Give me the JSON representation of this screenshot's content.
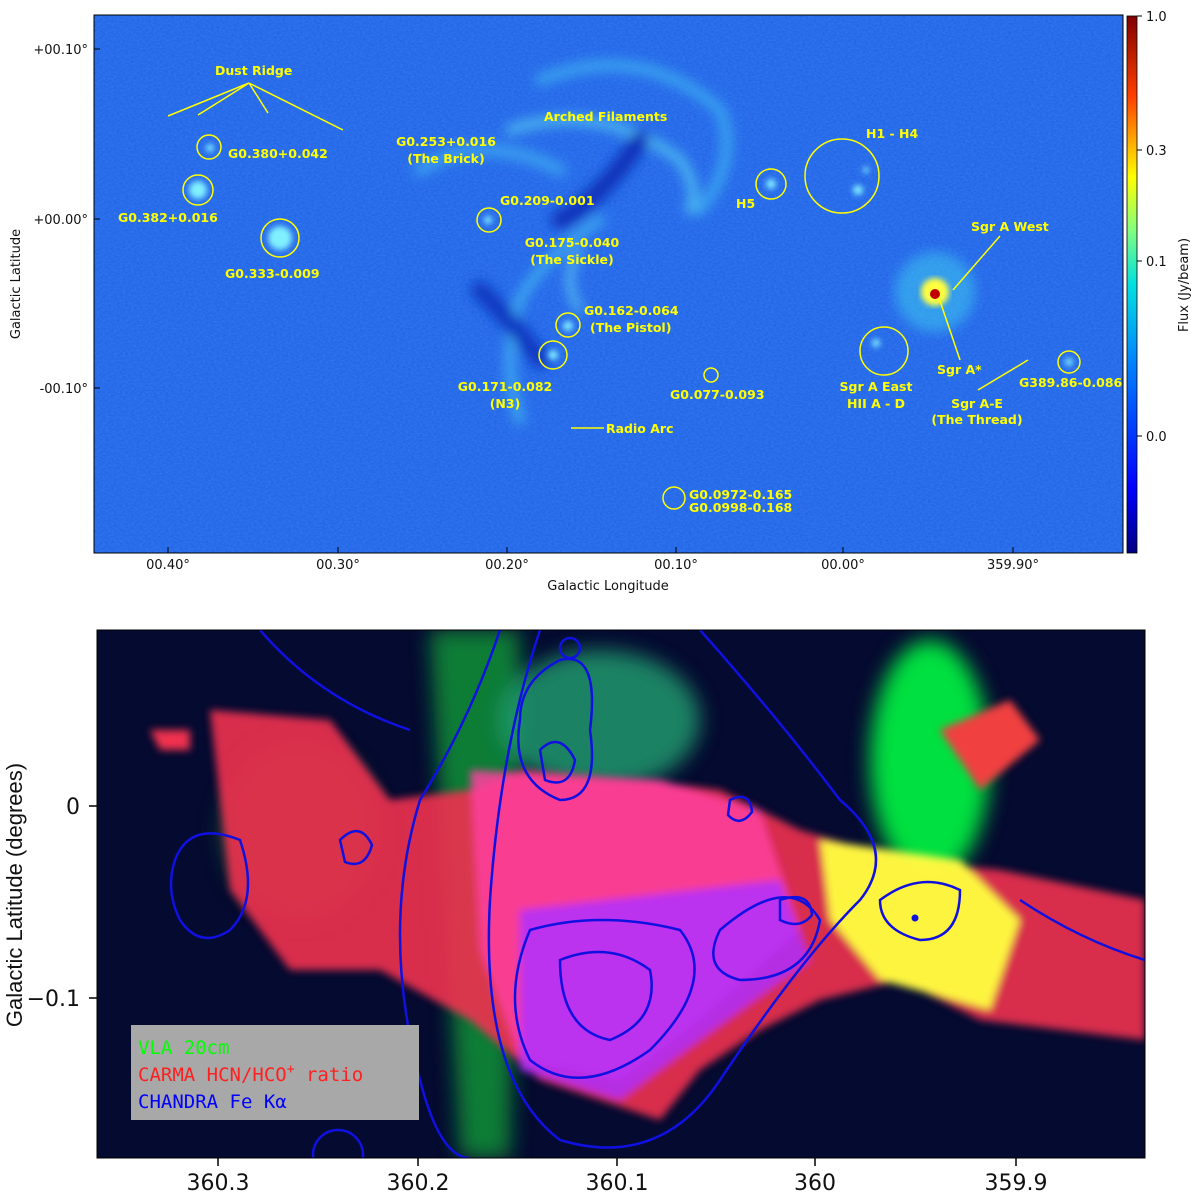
{
  "top_panel": {
    "x_axis_label": "Galactic Longitude",
    "y_axis_label": "Galactic Latitude",
    "x_ticks": [
      "00.40°",
      "00.30°",
      "00.20°",
      "00.10°",
      "00.00°",
      "359.90°"
    ],
    "y_ticks": [
      "+00.10°",
      "+00.00°",
      "-00.10°"
    ],
    "colorbar": {
      "label": "Flux (Jy/beam)",
      "ticks": [
        "1.0",
        "0.3",
        "0.1",
        "0.0"
      ],
      "colormap": "jet"
    },
    "annotation_color": "#ffff00",
    "annotations": {
      "dust_ridge": "Dust Ridge",
      "g0380": "G0.380+0.042",
      "g0382": "G0.382+0.016",
      "g0333": "G0.333-0.009",
      "brick_1": "G0.253+0.016",
      "brick_2": "(The Brick)",
      "arched": "Arched Filaments",
      "g0209": "G0.209-0.001",
      "sickle_1": "G0.175-0.040",
      "sickle_2": "(The Sickle)",
      "pistol_1": "G0.162-0.064",
      "pistol_2": "(The Pistol)",
      "n3_1": "G0.171-0.082",
      "n3_2": "(N3)",
      "g0077": "G0.077-0.093",
      "radio_arc": "Radio Arc",
      "g0097_1": "G0.0972-0.165",
      "g0097_2": "G0.0998-0.168",
      "h5": "H5",
      "h1h4": "H1 - H4",
      "sgra_west": "Sgr A West",
      "sgra_star": "Sgr A*",
      "sgra_east_1": "Sgr A East",
      "sgra_east_2": "HII A - D",
      "thread_1": "Sgr A-E",
      "thread_2": "(The Thread)",
      "g389": "G389.86-0.086"
    }
  },
  "bottom_panel": {
    "y_axis_label": "Galactic Latitude (degrees)",
    "x_ticks": [
      "360.3",
      "360.2",
      "360.1",
      "360",
      "359.9"
    ],
    "y_ticks": [
      "0",
      "−0.1"
    ],
    "legend": {
      "vla": "VLA 20cm",
      "carma_prefix": "CARMA HCN/HCO",
      "carma_sup": "+",
      "carma_suffix": " ratio",
      "chandra": "CHANDRA Fe Kα"
    },
    "colors": {
      "vla": "#00ff00",
      "carma": "#ff2020",
      "chandra": "#0000ff"
    }
  }
}
